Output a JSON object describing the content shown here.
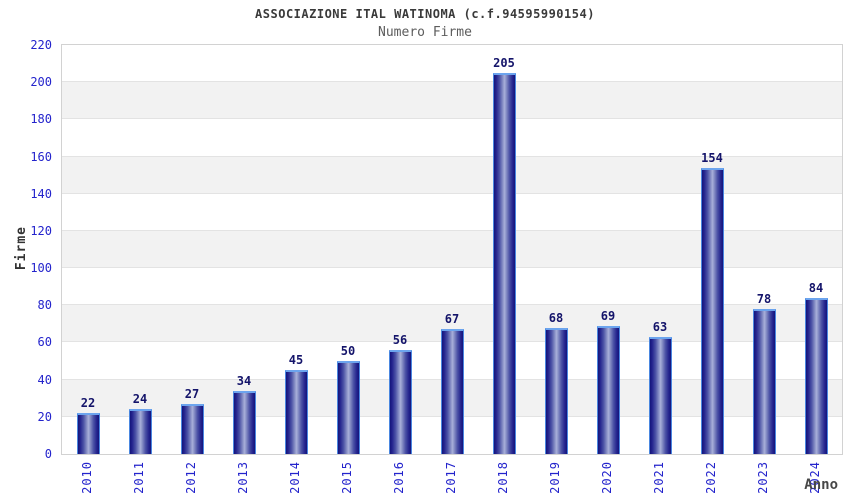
{
  "chart_data": {
    "type": "bar",
    "title": "ASSOCIAZIONE ITAL WATINOMA (c.f.94595990154)",
    "subtitle": "Numero Firme",
    "xlabel": "Anno",
    "ylabel": "Firme",
    "categories": [
      "2010",
      "2011",
      "2012",
      "2013",
      "2014",
      "2015",
      "2016",
      "2017",
      "2018",
      "2019",
      "2020",
      "2021",
      "2022",
      "2023",
      "2024"
    ],
    "values": [
      22,
      24,
      27,
      34,
      45,
      50,
      56,
      67,
      205,
      68,
      69,
      63,
      154,
      78,
      84
    ],
    "ylim": [
      0,
      220
    ],
    "ytick_step": 20,
    "ytick_labels": [
      "0",
      "20",
      "40",
      "60",
      "80",
      "100",
      "120",
      "140",
      "160",
      "180",
      "200",
      "220"
    ],
    "grid": "alternating horizontal bands, light gridlines every 20",
    "legend": "none",
    "colors": {
      "bar_edge": "#4a87e0",
      "bar_dark": "#15157b",
      "bar_light": "#a9b0da",
      "axis_tick_label": "#2424cc",
      "value_label": "#14146a",
      "band_gray": "#f2f2f2",
      "band_white": "#ffffff",
      "plot_border": "#d2d2d2",
      "title_color": "#3a3a3a",
      "subtitle_color": "#5d5d5d"
    }
  }
}
